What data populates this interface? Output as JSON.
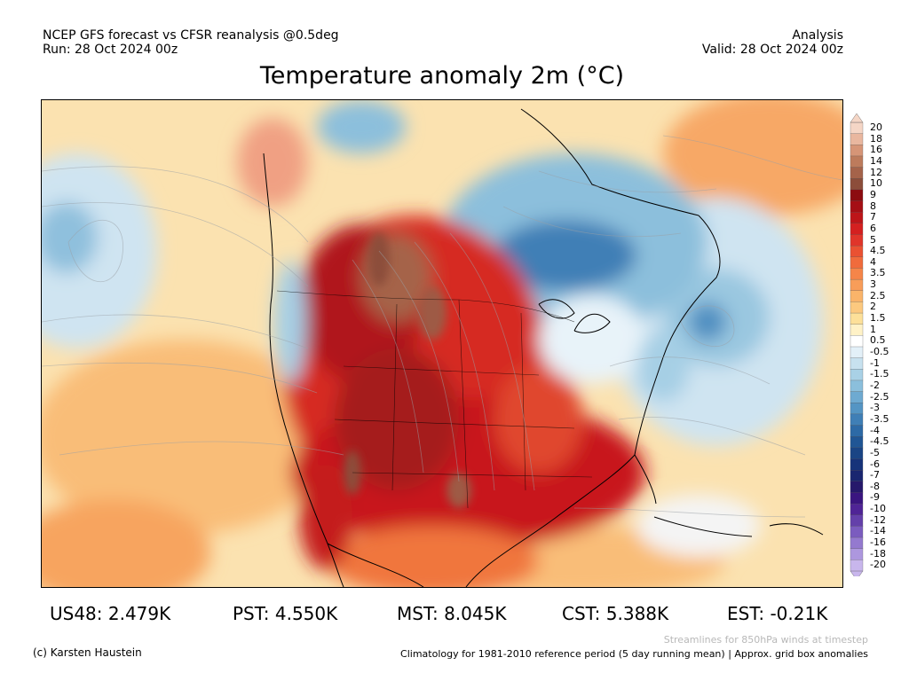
{
  "header": {
    "left_line1": "NCEP GFS forecast vs CFSR reanalysis @0.5deg",
    "left_line2": "Run: 28 Oct 2024 00z",
    "right_line1": "Analysis",
    "right_line2": "Valid: 28 Oct 2024 00z"
  },
  "title": "Temperature anomaly 2m (°C)",
  "legend": {
    "labels": [
      "20",
      "18",
      "16",
      "14",
      "12",
      "10",
      "9",
      "8",
      "7",
      "6",
      "5",
      "4.5",
      "4",
      "3.5",
      "3",
      "2.5",
      "2",
      "1.5",
      "1",
      "0.5",
      "-0.5",
      "-1",
      "-1.5",
      "-2",
      "-2.5",
      "-3",
      "-3.5",
      "-4",
      "-4.5",
      "-5",
      "-6",
      "-7",
      "-8",
      "-9",
      "-10",
      "-12",
      "-14",
      "-16",
      "-18",
      "-20"
    ],
    "colors": [
      "#f5d6c6",
      "#e9b79f",
      "#d69577",
      "#bd7b5c",
      "#a5634a",
      "#8c4d3a",
      "#8c0c10",
      "#a50f15",
      "#bd1519",
      "#d42020",
      "#e0352a",
      "#ea5132",
      "#f06b3c",
      "#f58549",
      "#f89d59",
      "#fab46a",
      "#fcc97f",
      "#fde099",
      "#fff2c7",
      "#ffffff",
      "#e3f0f8",
      "#c7e1ef",
      "#a9d1e6",
      "#8bbfdc",
      "#6eaad1",
      "#5495c4",
      "#3f7fb6",
      "#2d6aa6",
      "#205695",
      "#1a4585",
      "#16337a",
      "#1a2670",
      "#26196b",
      "#3a1580",
      "#4f2496",
      "#6440aa",
      "#7b5cbf",
      "#9479cf",
      "#ad97de",
      "#c8b6ec"
    ]
  },
  "stats": {
    "us48": "US48: 2.479K",
    "pst": "PST: 4.550K",
    "mst": "MST: 8.045K",
    "cst": "CST: 5.388K",
    "est": "EST: -0.21K"
  },
  "footer": {
    "credit": "(c) Karsten Haustein",
    "note_streamlines": "Streamlines for 850hPa winds at timestep",
    "note_climatology": "Climatology for 1981-2010 reference period (5 day running mean) | Approx. grid box anomalies"
  }
}
